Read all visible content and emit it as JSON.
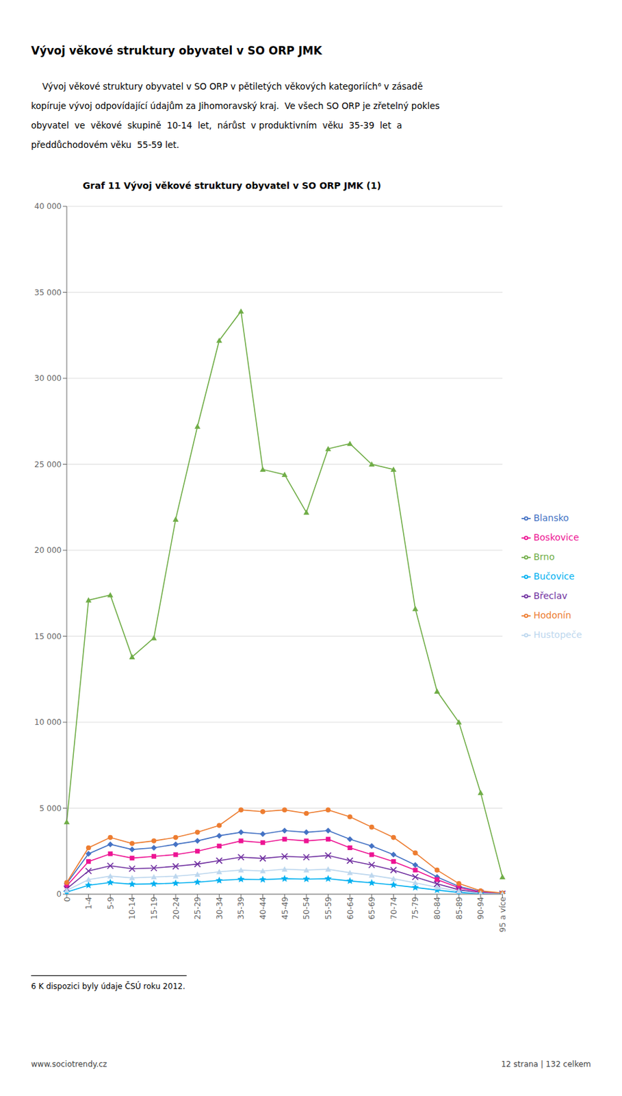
{
  "chart_data": {
    "type": "line",
    "title": "Graf 11 Vývoj věkové struktury obyvatel v SO ORP JMK (1)",
    "annotations": [
      "Vývoj věkové struktury obyvatel v SO ORP JMK",
      "    Vývoj věkové struktury obyvatel v SO ORP v pětiletých věkových kategoriích⁶ v zásadě",
      "kopíruje vývoj odpovídající údajům za Jihomoravský kraj.  Ve všech SO ORP je zřetelný pokles",
      "obyvatel  ve  věkové  skupině  10-14  let,  nárůst  v produktivním  věku  35-39  let  a",
      "předdůchodovém věku  55-59 let.",
      "6 K dispozici byly údaje ČSÚ roku 2012.",
      "www.sociotrendy.cz",
      "12 strana | 132 celkem"
    ],
    "categories": [
      "0",
      "1-4",
      "5-9",
      "10-14",
      "15-19",
      "20-24",
      "25-29",
      "30-34",
      "35-39",
      "40-44",
      "45-49",
      "50-54",
      "55-59",
      "60-64",
      "65-69",
      "70-74",
      "75-79",
      "80-84",
      "85-89",
      "90-94",
      "95 a více"
    ],
    "ylim": [
      0,
      40000
    ],
    "yticks": [
      0,
      {
        "value": 5000,
        "label": "5 000"
      },
      {
        "value": 10000,
        "label": "10 000"
      },
      {
        "value": 15000,
        "label": "15 000"
      },
      {
        "value": 20000,
        "label": "20 000"
      },
      {
        "value": 25000,
        "label": "25 000"
      },
      {
        "value": 30000,
        "label": "30 000"
      },
      {
        "value": 35000,
        "label": "35 000"
      },
      {
        "value": 40000,
        "label": "40 000"
      }
    ],
    "grid": true,
    "legend": "right",
    "series": [
      {
        "name": "Blansko",
        "color": "#4472C4",
        "marker": "diamond",
        "values": [
          620,
          2350,
          2900,
          2600,
          2700,
          2900,
          3100,
          3400,
          3600,
          3500,
          3700,
          3600,
          3700,
          3200,
          2800,
          2300,
          1700,
          1000,
          450,
          150,
          50
        ]
      },
      {
        "name": "Boskovice",
        "color": "#ED1493",
        "marker": "square",
        "values": [
          480,
          1900,
          2350,
          2100,
          2200,
          2300,
          2500,
          2800,
          3100,
          3000,
          3200,
          3100,
          3200,
          2700,
          2300,
          1900,
          1400,
          850,
          380,
          120,
          40
        ]
      },
      {
        "name": "Brno",
        "color": "#70AD47",
        "marker": "triangle",
        "values": [
          4200,
          17100,
          17400,
          13800,
          14900,
          21800,
          27200,
          32200,
          33900,
          24700,
          24400,
          22200,
          25900,
          26200,
          25000,
          24700,
          16600,
          11800,
          10000,
          5900,
          1000
        ]
      },
      {
        "name": "Břeclav",
        "color": "#7030A0",
        "marker": "cross",
        "values": [
          320,
          1350,
          1650,
          1480,
          1520,
          1620,
          1750,
          1950,
          2150,
          2080,
          2200,
          2150,
          2250,
          1950,
          1700,
          1400,
          1000,
          600,
          260,
          85,
          25
        ]
      },
      {
        "name": "Bučovice",
        "color": "#00B0F0",
        "marker": "star",
        "values": [
          120,
          520,
          680,
          580,
          600,
          640,
          700,
          800,
          870,
          850,
          900,
          880,
          900,
          770,
          660,
          540,
          390,
          240,
          100,
          30,
          8
        ]
      },
      {
        "name": "Hodonín",
        "color": "#ED7D31",
        "marker": "circle",
        "values": [
          680,
          2700,
          3300,
          2950,
          3100,
          3300,
          3600,
          4000,
          4900,
          4800,
          4900,
          4700,
          4900,
          4500,
          3900,
          3300,
          2400,
          1400,
          620,
          200,
          65
        ]
      },
      {
        "name": "Hustopeče",
        "color": "#BDD7EE",
        "marker": "triangle",
        "values": [
          220,
          850,
          1050,
          950,
          1000,
          1050,
          1150,
          1300,
          1400,
          1350,
          1450,
          1400,
          1450,
          1250,
          1100,
          900,
          660,
          400,
          175,
          55,
          15
        ]
      }
    ]
  }
}
